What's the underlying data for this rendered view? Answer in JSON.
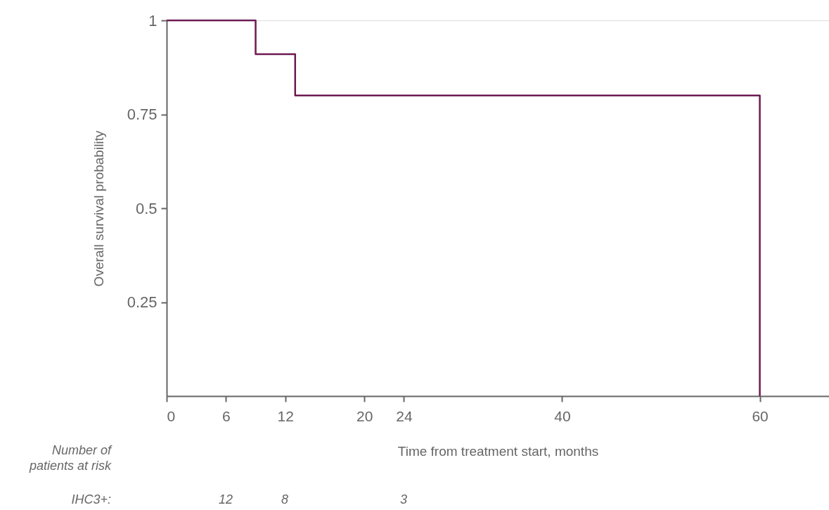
{
  "chart_data": {
    "type": "step",
    "xlabel": "Time from treatment start, months",
    "ylabel": "Overall survival probability",
    "series": [
      {
        "color": "#6d1a52",
        "x": [
          0,
          9,
          13,
          60
        ],
        "values": [
          1,
          0.91,
          0.8,
          0
        ]
      }
    ],
    "xlim": [
      0,
      67
    ],
    "xticks": [
      0,
      6,
      12,
      20,
      24,
      40,
      60
    ],
    "ylim": [
      0,
      1
    ],
    "yticks": [
      0.25,
      0.5,
      0.75,
      1
    ],
    "grid": false,
    "marker": "none",
    "line_style": "solid",
    "annotations": [
      "Number of\npatients at risk",
      "IHC3+:",
      "12",
      "8",
      "3"
    ]
  }
}
